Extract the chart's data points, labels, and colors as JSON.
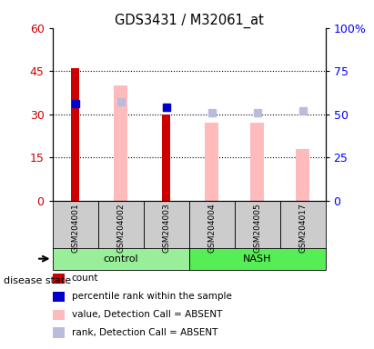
{
  "title": "GDS3431 / M32061_at",
  "samples": [
    "GSM204001",
    "GSM204002",
    "GSM204003",
    "GSM204004",
    "GSM204005",
    "GSM204017"
  ],
  "groups": [
    "control",
    "control",
    "control",
    "NASH",
    "NASH",
    "NASH"
  ],
  "count_values": [
    46,
    0,
    30,
    0,
    0,
    0
  ],
  "percentile_rank_values": [
    56,
    0,
    54,
    0,
    0,
    0
  ],
  "value_absent": [
    0,
    40,
    0,
    27,
    27,
    18
  ],
  "rank_absent": [
    0,
    57,
    54,
    51,
    51,
    52
  ],
  "ylim_left": [
    0,
    60
  ],
  "ylim_right": [
    0,
    100
  ],
  "yticks_left": [
    0,
    15,
    30,
    45,
    60
  ],
  "yticks_right": [
    0,
    25,
    50,
    75,
    100
  ],
  "left_tick_labels": [
    "0",
    "15",
    "30",
    "45",
    "60"
  ],
  "right_tick_labels": [
    "0",
    "25",
    "50",
    "75",
    "100%"
  ],
  "color_count": "#cc0000",
  "color_percentile": "#0000cc",
  "color_value_absent": "#ffbbbb",
  "color_rank_absent": "#bbbbdd",
  "group_colors": {
    "control": "#99ee99",
    "NASH": "#55ee55"
  },
  "bg_color": "#cccccc",
  "legend_items": [
    {
      "label": "count",
      "color": "#cc0000",
      "marker": "s"
    },
    {
      "label": "percentile rank within the sample",
      "color": "#0000cc",
      "marker": "s"
    },
    {
      "label": "value, Detection Call = ABSENT",
      "color": "#ffbbbb",
      "marker": "s"
    },
    {
      "label": "rank, Detection Call = ABSENT",
      "color": "#bbbbdd",
      "marker": "s"
    }
  ]
}
